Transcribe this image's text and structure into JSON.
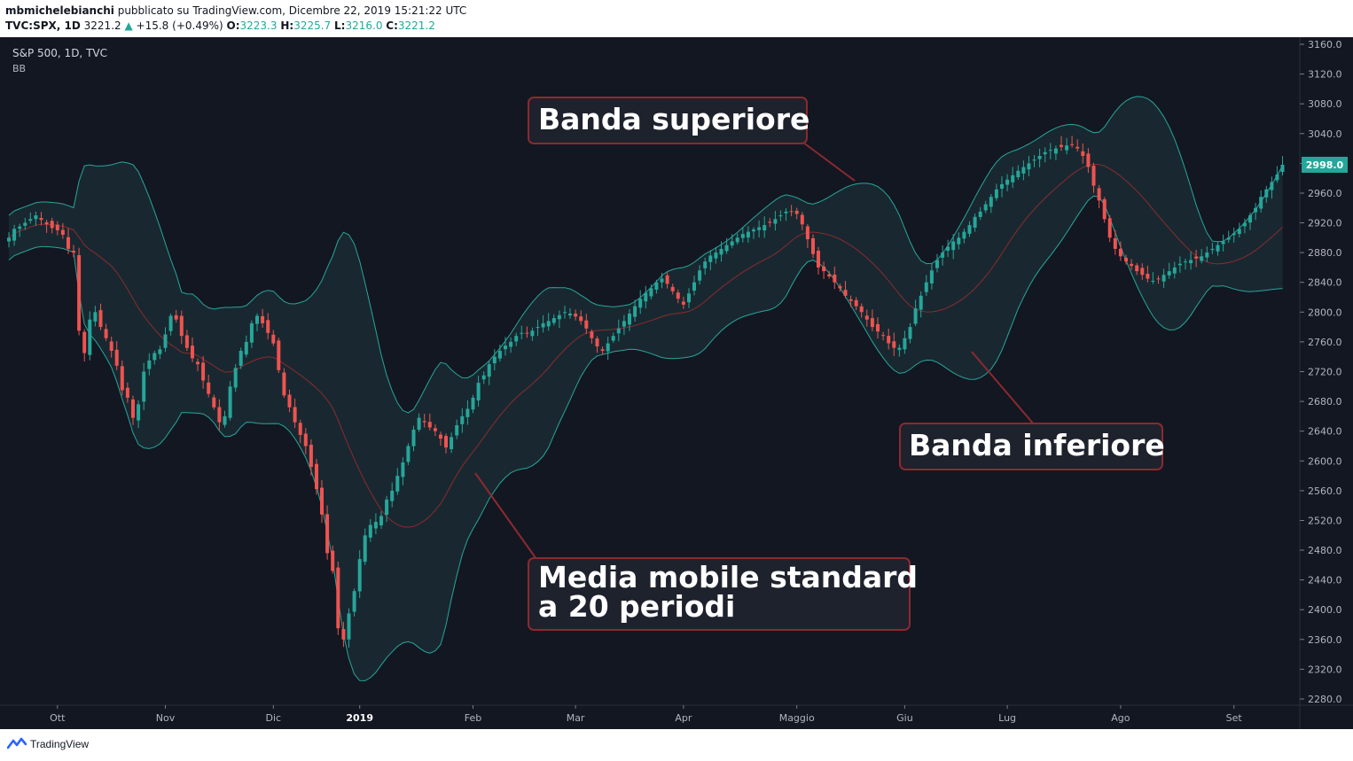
{
  "header": {
    "user": "mbmichelebianchi",
    "published": "pubblicato su TradingView.com, Dicembre 22, 2019 15:21:22 UTC",
    "symbol": "TVC:SPX, 1D",
    "last": "3221.2",
    "change_arrow": "▲",
    "change": "+15.8 (+0.49%)",
    "o_label": "O:",
    "o_val": "3223.3",
    "h_label": "H:",
    "h_val": "3225.7",
    "l_label": "L:",
    "l_val": "3216.0",
    "c_label": "C:",
    "c_val": "3221.2"
  },
  "legend": {
    "title": "S&P 500, 1D, TVC",
    "indicator": "BB"
  },
  "price_badge": "2998.0",
  "callouts": {
    "upper": "Banda superiore",
    "lower": "Banda inferiore",
    "middle_line1": "Media mobile standard",
    "middle_line2": "a 20 periodi"
  },
  "footer": {
    "brand": "TradingView",
    "logo_icon": "tradingview-logo-icon"
  },
  "colors": {
    "background": "#131722",
    "band_fill": "#1b2b33",
    "band_line": "#26a69a",
    "basis_line": "#8b2a2f",
    "up": "#26a69a",
    "down": "#ef5350",
    "callout_border": "#8b2a2f",
    "callout_bg": "#1e222d",
    "text": "#d1d4dc"
  },
  "chart_data": {
    "type": "candlestick",
    "title": "S&P 500, 1D, TVC",
    "indicator": "Bollinger Bands (20)",
    "y_axis": {
      "range": [
        2280,
        3160
      ],
      "ticks": [
        "3160.0",
        "3120.0",
        "3080.0",
        "3040.0",
        "3000.0",
        "2960.0",
        "2920.0",
        "2880.0",
        "2840.0",
        "2800.0",
        "2760.0",
        "2720.0",
        "2680.0",
        "2640.0",
        "2600.0",
        "2560.0",
        "2520.0",
        "2480.0",
        "2440.0",
        "2400.0",
        "2360.0",
        "2320.0",
        "2280.0"
      ]
    },
    "x_axis": {
      "labels": [
        {
          "text": "Ott",
          "idx": 9
        },
        {
          "text": "Nov",
          "idx": 29
        },
        {
          "text": "Dic",
          "idx": 49
        },
        {
          "text": "2019",
          "idx": 65,
          "bold": true
        },
        {
          "text": "Feb",
          "idx": 86
        },
        {
          "text": "Mar",
          "idx": 105
        },
        {
          "text": "Apr",
          "idx": 125
        },
        {
          "text": "Maggio",
          "idx": 146
        },
        {
          "text": "Giu",
          "idx": 166
        },
        {
          "text": "Lug",
          "idx": 185
        },
        {
          "text": "Ago",
          "idx": 206
        },
        {
          "text": "Set",
          "idx": 227
        }
      ]
    },
    "closes": [
      2900,
      2912,
      2915,
      2920,
      2925,
      2930,
      2924,
      2918,
      2913,
      2910,
      2904,
      2885,
      2880,
      2775,
      2745,
      2790,
      2800,
      2780,
      2765,
      2748,
      2728,
      2695,
      2685,
      2658,
      2676,
      2720,
      2735,
      2745,
      2750,
      2770,
      2795,
      2790,
      2768,
      2752,
      2738,
      2730,
      2708,
      2690,
      2672,
      2652,
      2660,
      2700,
      2725,
      2748,
      2760,
      2785,
      2795,
      2785,
      2772,
      2758,
      2722,
      2688,
      2672,
      2652,
      2635,
      2620,
      2592,
      2562,
      2528,
      2476,
      2452,
      2375,
      2360,
      2395,
      2425,
      2468,
      2500,
      2514,
      2518,
      2526,
      2548,
      2560,
      2580,
      2598,
      2620,
      2642,
      2658,
      2652,
      2645,
      2640,
      2630,
      2618,
      2632,
      2648,
      2660,
      2670,
      2685,
      2705,
      2715,
      2730,
      2740,
      2748,
      2755,
      2760,
      2768,
      2772,
      2772,
      2775,
      2780,
      2785,
      2788,
      2792,
      2796,
      2800,
      2798,
      2794,
      2788,
      2778,
      2765,
      2754,
      2748,
      2758,
      2768,
      2778,
      2788,
      2798,
      2808,
      2818,
      2826,
      2832,
      2840,
      2845,
      2838,
      2828,
      2818,
      2810,
      2825,
      2840,
      2856,
      2868,
      2876,
      2880,
      2885,
      2890,
      2895,
      2900,
      2905,
      2908,
      2911,
      2914,
      2917,
      2920,
      2925,
      2930,
      2935,
      2935,
      2932,
      2918,
      2898,
      2878,
      2860,
      2855,
      2848,
      2840,
      2832,
      2822,
      2815,
      2808,
      2800,
      2790,
      2780,
      2774,
      2768,
      2758,
      2752,
      2752,
      2765,
      2780,
      2805,
      2822,
      2840,
      2856,
      2870,
      2880,
      2888,
      2895,
      2900,
      2908,
      2917,
      2928,
      2935,
      2945,
      2955,
      2965,
      2972,
      2978,
      2984,
      2990,
      2995,
      3000,
      3005,
      3010,
      3015,
      3018,
      3020,
      3022,
      3024,
      3025,
      3020,
      3010,
      2995,
      2970,
      2950,
      2925,
      2900,
      2885,
      2875,
      2868,
      2862,
      2855,
      2850,
      2845,
      2842,
      2845,
      2850,
      2855,
      2860,
      2865,
      2868,
      2870,
      2872,
      2875,
      2880,
      2885,
      2890,
      2895,
      2900,
      2906,
      2912,
      2920,
      2930,
      2940,
      2955,
      2965,
      2975,
      2985,
      2998
    ]
  }
}
